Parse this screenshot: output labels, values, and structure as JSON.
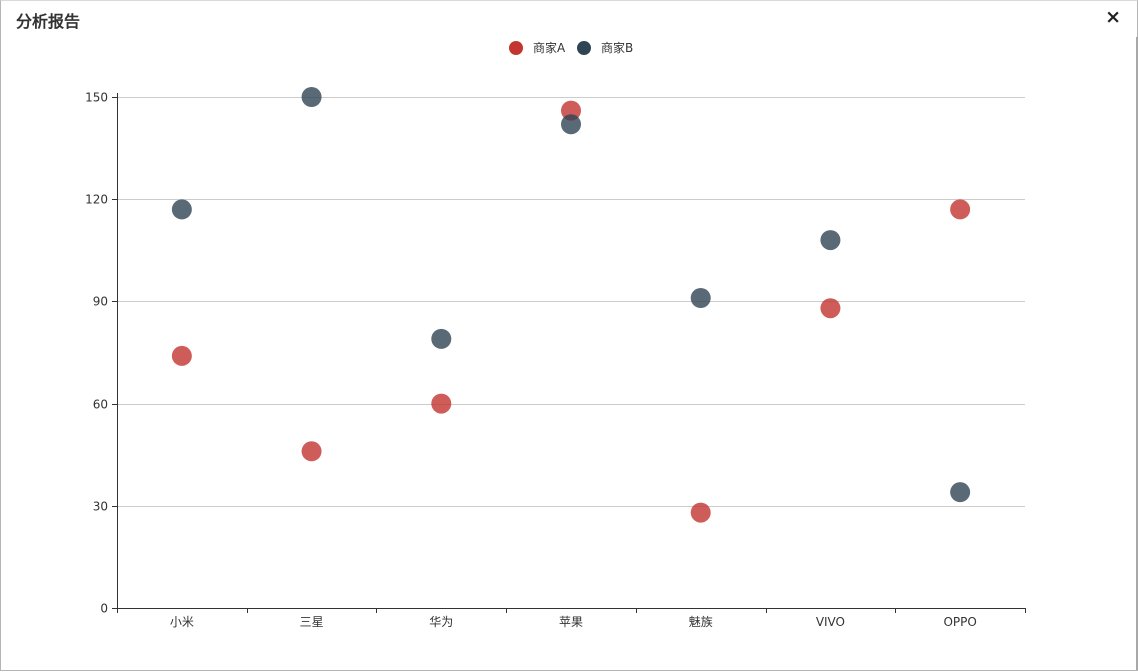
{
  "window": {
    "title": "分析报告",
    "close_icon": "×"
  },
  "colors": {
    "series_a": "#c23531",
    "series_b": "#2f4554",
    "grid": "#cccccc",
    "axis": "#333333"
  },
  "chart_data": {
    "type": "scatter",
    "title": "",
    "xlabel": "",
    "ylabel": "",
    "categories": [
      "小米",
      "三星",
      "华为",
      "苹果",
      "魅族",
      "VIVO",
      "OPPO"
    ],
    "ylim": [
      0,
      150
    ],
    "yticks": [
      0,
      30,
      60,
      90,
      120,
      150
    ],
    "grid": true,
    "legend_position": "top-center",
    "series": [
      {
        "name": "商家A",
        "color": "#c23531",
        "values": [
          74,
          46,
          60,
          146,
          28,
          88,
          117
        ]
      },
      {
        "name": "商家B",
        "color": "#2f4554",
        "values": [
          117,
          150,
          79,
          142,
          91,
          108,
          34
        ]
      }
    ]
  }
}
